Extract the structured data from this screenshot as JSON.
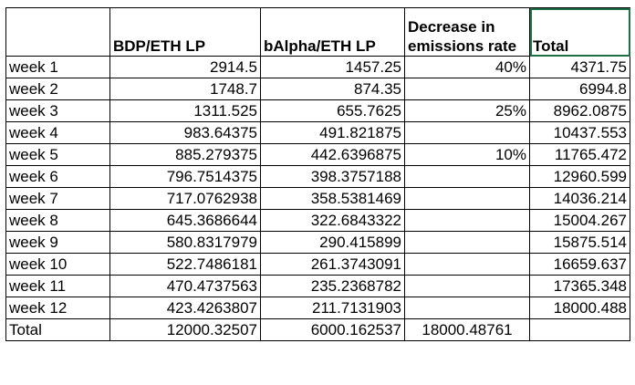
{
  "spreadsheet": {
    "headers": [
      "",
      "BDP/ETH LP",
      "bAlpha/ETH LP",
      "Decrease in emissions rate",
      "Total"
    ],
    "rows": [
      [
        "week 1",
        "2914.5",
        "1457.25",
        "40%",
        "4371.75"
      ],
      [
        "week 2",
        "1748.7",
        "874.35",
        "",
        "6994.8"
      ],
      [
        "week 3",
        "1311.525",
        "655.7625",
        "25%",
        "8962.0875"
      ],
      [
        "week 4",
        "983.64375",
        "491.821875",
        "",
        "10437.553"
      ],
      [
        "week 5",
        "885.279375",
        "442.6396875",
        "10%",
        "11765.472"
      ],
      [
        "week 6",
        "796.7514375",
        "398.3757188",
        "",
        "12960.599"
      ],
      [
        "week 7",
        "717.0762938",
        "358.5381469",
        "",
        "14036.214"
      ],
      [
        "week 8",
        "645.3686644",
        "322.6843322",
        "",
        "15004.267"
      ],
      [
        "week 9",
        "580.8317979",
        "290.415899",
        "",
        "15875.514"
      ],
      [
        "week 10",
        "522.7486181",
        "261.3743091",
        "",
        "16659.637"
      ],
      [
        "week 11",
        "470.4737563",
        "235.2368782",
        "",
        "17365.348"
      ],
      [
        "week 12",
        "423.4263807",
        "211.7131903",
        "",
        "18000.488"
      ]
    ],
    "total_row": [
      "Total",
      "12000.32507",
      "6000.162537",
      "18000.48761",
      ""
    ]
  }
}
